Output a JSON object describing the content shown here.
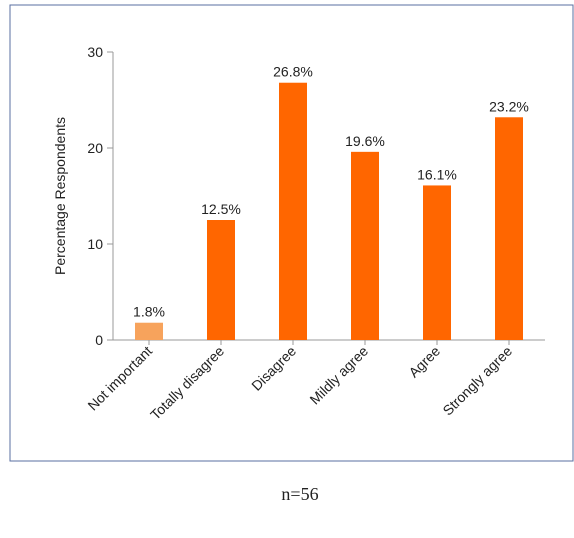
{
  "chart_data": {
    "type": "bar",
    "categories": [
      "Not important",
      "Totally disagree",
      "Disagree",
      "Mildly agree",
      "Agree",
      "Strongly agree"
    ],
    "values": [
      1.8,
      12.5,
      26.8,
      19.6,
      16.1,
      23.2
    ],
    "value_labels": [
      "1.8%",
      "12.5%",
      "26.8%",
      "19.6%",
      "16.1%",
      "23.2%"
    ],
    "colors": [
      "#f7a35c",
      "#ff6600",
      "#ff6600",
      "#ff6600",
      "#ff6600",
      "#ff6600"
    ],
    "ylabel": "Percentage Respondents",
    "ylim": [
      0,
      30
    ],
    "yticks": [
      0,
      10,
      20,
      30
    ],
    "note": "n=56"
  }
}
